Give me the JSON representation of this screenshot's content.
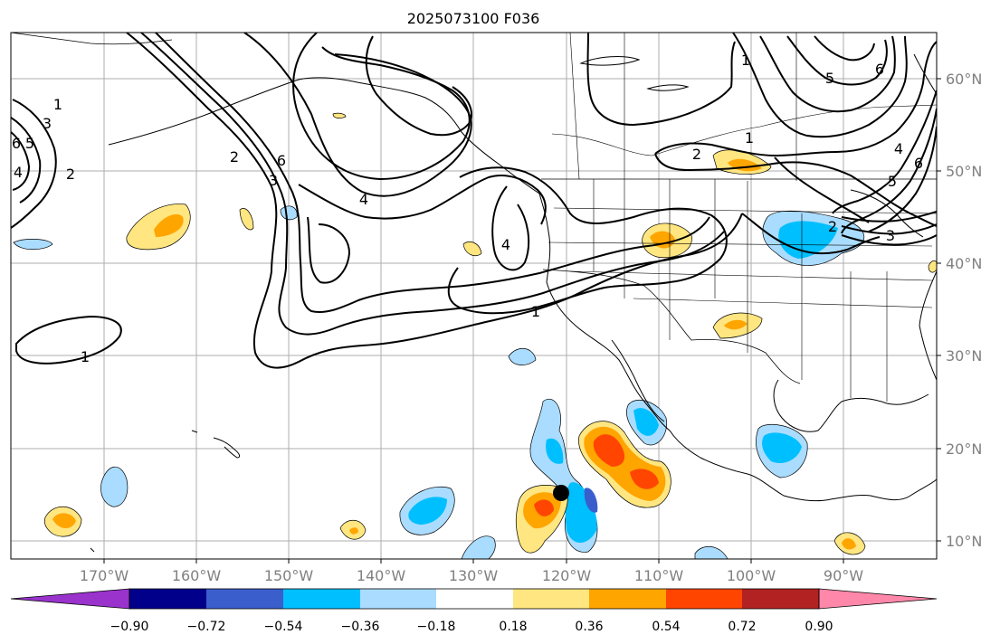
{
  "title": "2025073100 F036",
  "longitude_labels": [
    "170°W",
    "160°W",
    "150°W",
    "140°W",
    "130°W",
    "120°W",
    "110°W",
    "100°W",
    "90°W"
  ],
  "latitude_labels": [
    "60°N",
    "50°N",
    "40°N",
    "30°N",
    "20°N",
    "10°N"
  ],
  "contour_labels": [
    "1",
    "3",
    "5",
    "6",
    "4",
    "2",
    "1",
    "2",
    "3",
    "6",
    "4",
    "4",
    "1",
    "2",
    "1",
    "5",
    "6",
    "2",
    "4",
    "6",
    "5",
    "3",
    "1"
  ],
  "colorbar": {
    "tick_labels": [
      "−0.90",
      "−0.72",
      "−0.54",
      "−0.36",
      "−0.18",
      "0.18",
      "0.36",
      "0.54",
      "0.72",
      "0.90"
    ],
    "colors": [
      "#9933cc",
      "#00008b",
      "#3a5fcd",
      "#00bfff",
      "#aadcff",
      "#ffffff",
      "#ffe680",
      "#ffa500",
      "#ff4500",
      "#b22222",
      "#ff88aa"
    ]
  },
  "map": {
    "land_color": "#ffffff",
    "ocean_color": "#ffffff",
    "grid_color": "#999999",
    "marker_color": "#000000"
  }
}
